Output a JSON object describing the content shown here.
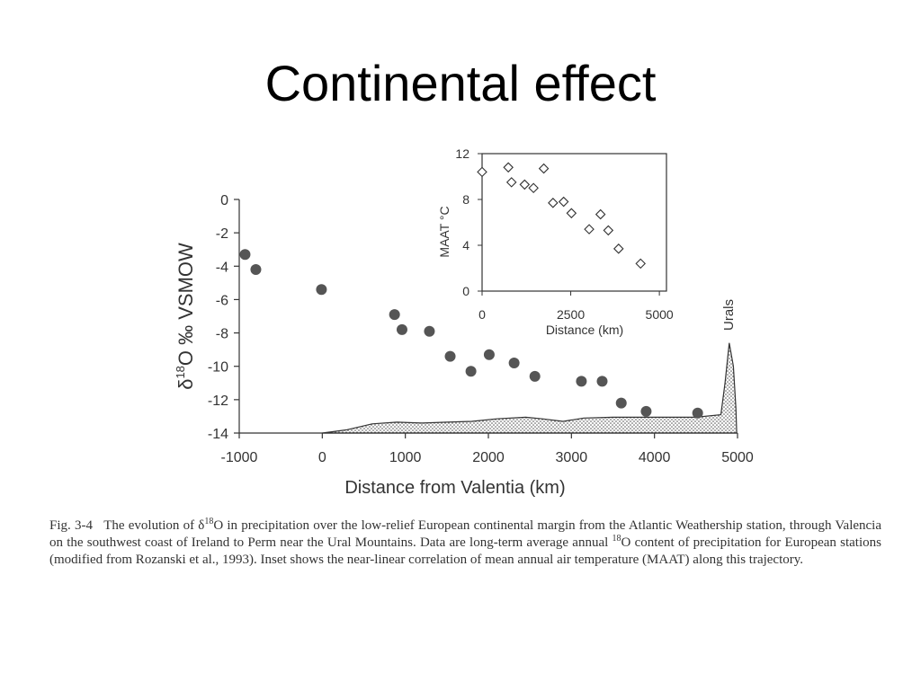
{
  "slide": {
    "title": "Continental effect"
  },
  "chart_data": [
    {
      "id": "main",
      "type": "scatter",
      "title": "",
      "xlabel": "Distance from Valentia (km)",
      "ylabel": "δ18O ‰ VSMOW",
      "xlim": [
        -1000,
        5000
      ],
      "ylim": [
        -14,
        0
      ],
      "xticks": [
        -1000,
        0,
        1000,
        2000,
        3000,
        4000,
        5000
      ],
      "yticks": [
        0,
        -2,
        -4,
        -6,
        -8,
        -10,
        -12,
        -14
      ],
      "grid": false,
      "points": [
        {
          "x": -930,
          "y": -3.3
        },
        {
          "x": -800,
          "y": -4.2
        },
        {
          "x": -10,
          "y": -5.4
        },
        {
          "x": 870,
          "y": -6.9
        },
        {
          "x": 960,
          "y": -7.8
        },
        {
          "x": 1290,
          "y": -7.9
        },
        {
          "x": 1540,
          "y": -9.4
        },
        {
          "x": 1790,
          "y": -10.3
        },
        {
          "x": 2010,
          "y": -9.3
        },
        {
          "x": 2310,
          "y": -9.8
        },
        {
          "x": 2560,
          "y": -10.6
        },
        {
          "x": 3120,
          "y": -10.9
        },
        {
          "x": 3370,
          "y": -10.9
        },
        {
          "x": 3600,
          "y": -12.2
        },
        {
          "x": 3900,
          "y": -12.7
        },
        {
          "x": 4520,
          "y": -12.8
        }
      ],
      "relief_profile": [
        {
          "x": 0,
          "y": -14.0
        },
        {
          "x": 300,
          "y": -13.8
        },
        {
          "x": 600,
          "y": -13.45
        },
        {
          "x": 900,
          "y": -13.35
        },
        {
          "x": 1200,
          "y": -13.4
        },
        {
          "x": 1500,
          "y": -13.35
        },
        {
          "x": 1800,
          "y": -13.3
        },
        {
          "x": 2100,
          "y": -13.15
        },
        {
          "x": 2450,
          "y": -13.05
        },
        {
          "x": 2650,
          "y": -13.15
        },
        {
          "x": 2900,
          "y": -13.3
        },
        {
          "x": 3150,
          "y": -13.1
        },
        {
          "x": 3500,
          "y": -13.05
        },
        {
          "x": 4000,
          "y": -13.05
        },
        {
          "x": 4500,
          "y": -13.05
        },
        {
          "x": 4800,
          "y": -12.9
        },
        {
          "x": 4850,
          "y": -11.0
        },
        {
          "x": 4900,
          "y": -8.6
        },
        {
          "x": 4950,
          "y": -10.0
        },
        {
          "x": 4980,
          "y": -12.5
        },
        {
          "x": 4990,
          "y": -14.0
        }
      ],
      "annotations": [
        "Urals"
      ]
    },
    {
      "id": "inset",
      "type": "scatter",
      "title": "",
      "xlabel": "Distance (km)",
      "ylabel": "MAAT °C",
      "xlim": [
        0,
        5200
      ],
      "ylim": [
        0,
        12
      ],
      "xticks": [
        0,
        2500,
        5000
      ],
      "yticks": [
        0,
        4,
        8,
        12
      ],
      "grid": false,
      "points": [
        {
          "x": 0,
          "y": 10.4
        },
        {
          "x": 740,
          "y": 10.8
        },
        {
          "x": 830,
          "y": 9.5
        },
        {
          "x": 1200,
          "y": 9.3
        },
        {
          "x": 1450,
          "y": 9.0
        },
        {
          "x": 1740,
          "y": 10.7
        },
        {
          "x": 2000,
          "y": 7.7
        },
        {
          "x": 2300,
          "y": 7.8
        },
        {
          "x": 2520,
          "y": 6.8
        },
        {
          "x": 3020,
          "y": 5.4
        },
        {
          "x": 3340,
          "y": 6.7
        },
        {
          "x": 3560,
          "y": 5.3
        },
        {
          "x": 3850,
          "y": 3.7
        },
        {
          "x": 4470,
          "y": 2.4
        }
      ]
    }
  ],
  "caption": {
    "fig_label": "Fig. 3-4",
    "part1": "The evolution of δ",
    "sup1": "18",
    "part2": "O in precipitation over the low-relief European continental margin from the Atlantic Weathership station, through Valencia on the southwest coast of Ireland to Perm near the Ural Mountains. Data are long-term average annual ",
    "sup2": "18",
    "part3": "O content of precipitation for European stations (modified from Rozanski et al., 1993). Inset shows the near-linear correlation of mean annual air temperature (MAAT) along this trajectory."
  },
  "colors": {
    "main_points": "#555555",
    "axis": "#333333",
    "text": "#333333"
  }
}
